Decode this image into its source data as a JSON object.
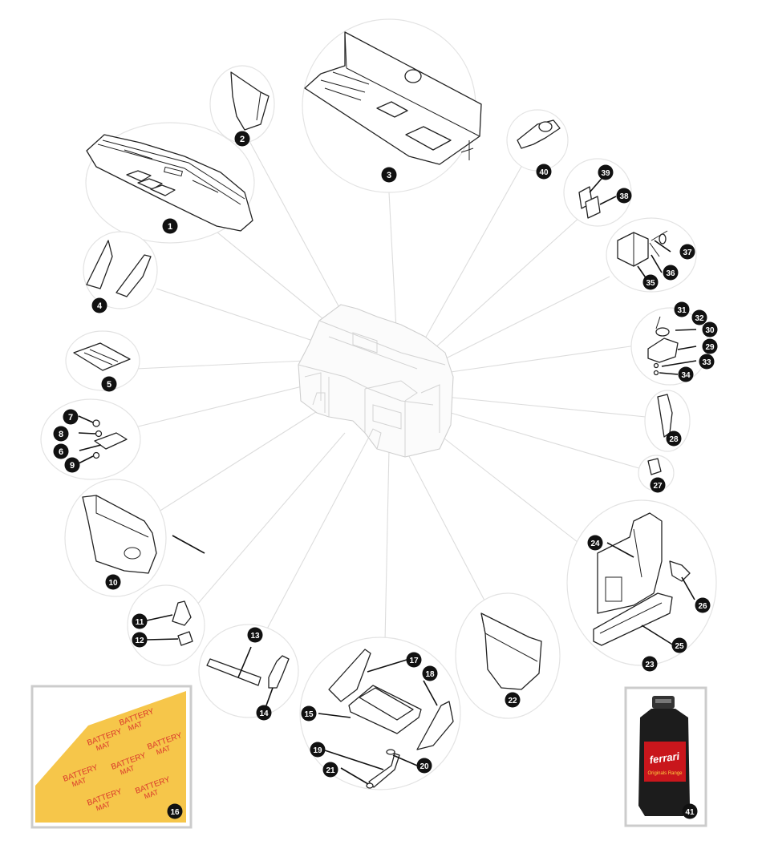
{
  "diagram": {
    "part_numbers": [
      "1",
      "2",
      "3",
      "4",
      "5",
      "6",
      "7",
      "8",
      "9",
      "10",
      "11",
      "12",
      "13",
      "14",
      "15",
      "16",
      "17",
      "18",
      "19",
      "20",
      "21",
      "22",
      "23",
      "24",
      "25",
      "26",
      "27",
      "28",
      "29",
      "30",
      "31",
      "32",
      "33",
      "34",
      "35",
      "36",
      "37",
      "38",
      "39",
      "40",
      "41"
    ],
    "battery_mat": {
      "label_line1": "BATTERY",
      "label_line2": "MAT"
    },
    "oil_bottle": {
      "brand": "ferrari",
      "caption": "Originals Range"
    },
    "colors": {
      "badge": "#111111",
      "mat_yellow": "#f6c64a",
      "mat_red": "#d9362b",
      "bottle_red": "#c9161c",
      "bottle_black": "#1c1c1c"
    }
  }
}
